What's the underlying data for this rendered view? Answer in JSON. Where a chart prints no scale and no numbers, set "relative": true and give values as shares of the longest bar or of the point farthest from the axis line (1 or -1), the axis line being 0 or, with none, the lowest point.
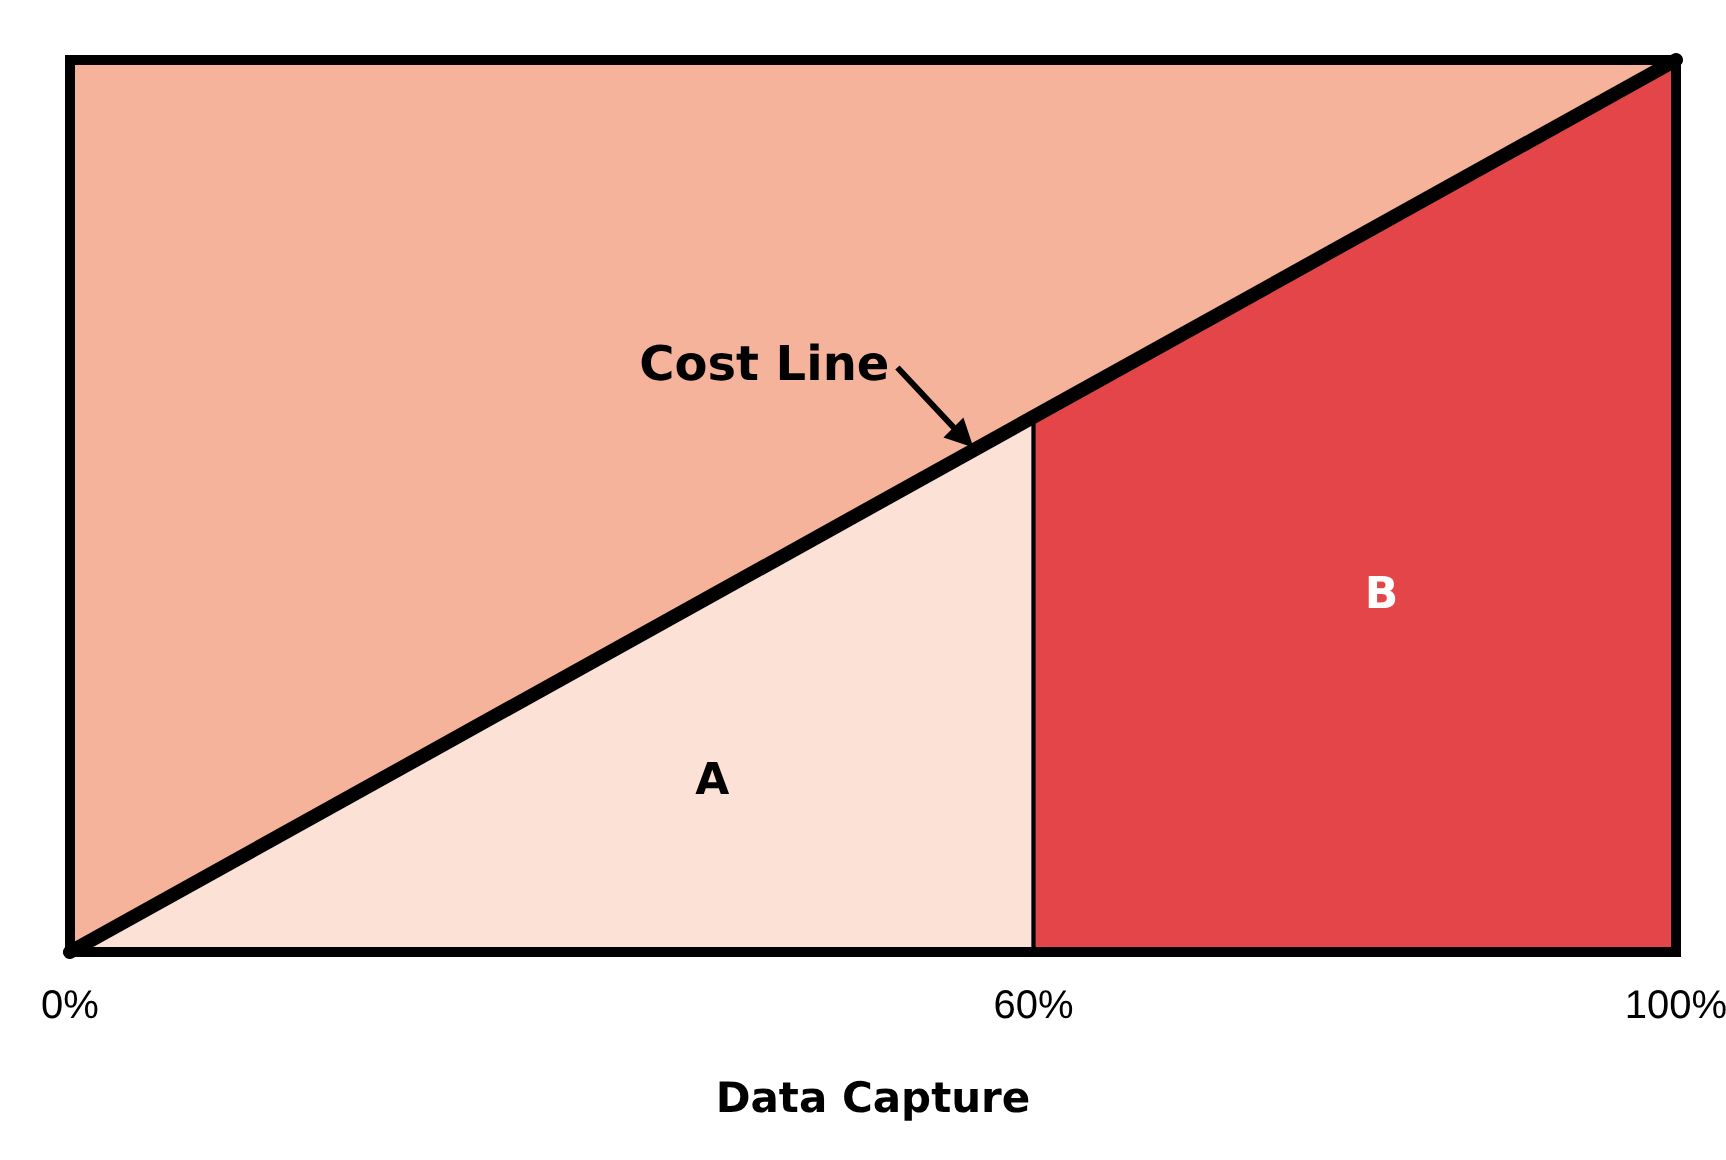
{
  "chart_data": {
    "type": "area",
    "relative": true,
    "xlabel": "Data Capture",
    "xlim": [
      0,
      100
    ],
    "xticks": [
      {
        "value": 0,
        "label": "0%"
      },
      {
        "value": 60,
        "label": "60%"
      },
      {
        "value": 100,
        "label": "100%"
      }
    ],
    "series": [
      {
        "name": "A",
        "color": "#fce1d6",
        "x": [
          0,
          60
        ],
        "values": [
          0,
          0.6
        ]
      },
      {
        "name": "B",
        "color": "#e34548",
        "x": [
          60,
          100
        ],
        "values": [
          0.6,
          1
        ]
      },
      {
        "type": "line",
        "color": "#000000",
        "x": [
          0,
          100
        ],
        "values": [
          0,
          1
        ]
      }
    ],
    "annotations": [
      {
        "text": "Cost Line",
        "x": 57,
        "y": 0.57
      }
    ]
  }
}
